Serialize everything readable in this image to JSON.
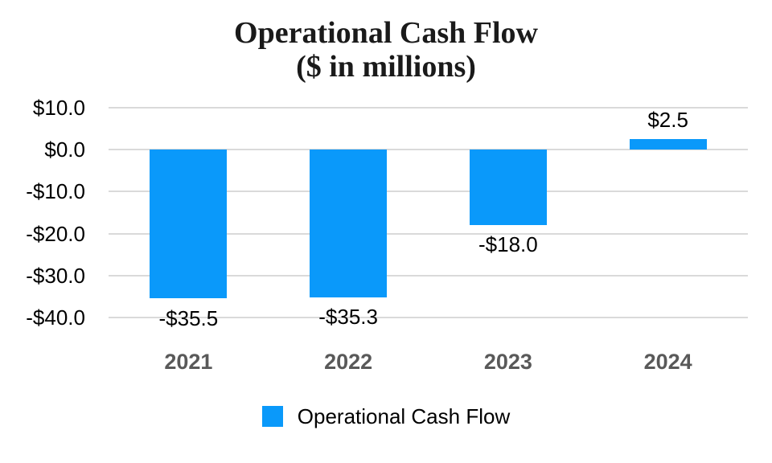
{
  "title": {
    "line1": "Operational Cash Flow",
    "line2": "($ in millions)"
  },
  "colors": {
    "bar": "#0a99fa",
    "grid": "#dadada",
    "ytick_label": "#000000",
    "x_label": "#595959",
    "value_label": "#000000",
    "title": "#1a1a1a"
  },
  "legend": {
    "label": "Operational Cash Flow",
    "swatch_color": "#0a99fa"
  },
  "chart_data": {
    "type": "bar",
    "title": "Operational Cash Flow",
    "subtitle": "($ in millions)",
    "series": [
      {
        "name": "Operational Cash Flow",
        "values": [
          -35.5,
          -35.3,
          -18.0,
          2.5
        ]
      }
    ],
    "categories": [
      "2021",
      "2022",
      "2023",
      "2024"
    ],
    "data_labels": [
      "-$35.5",
      "-$35.3",
      "-$18.0",
      "$2.5"
    ],
    "xlabel": "",
    "ylabel": "",
    "ylim": [
      -40,
      10
    ],
    "yticks": [
      10,
      0,
      -10,
      -20,
      -30,
      -40
    ],
    "ytick_labels": [
      "$10.0",
      "$0.0",
      "-$10.0",
      "-$20.0",
      "-$30.0",
      "-$40.0"
    ],
    "grid": true,
    "legend_position": "bottom"
  }
}
